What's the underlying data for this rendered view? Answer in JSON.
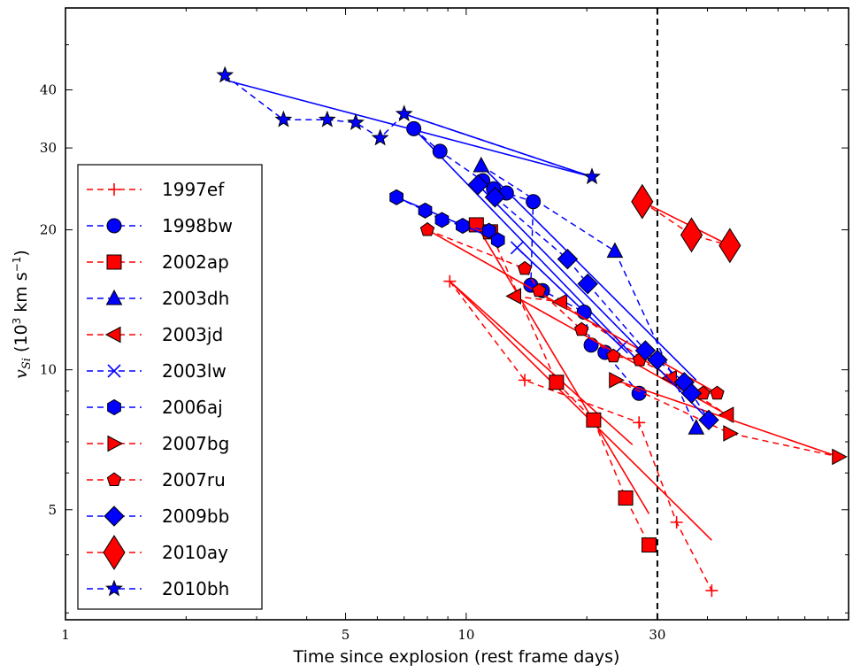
{
  "chart_data": {
    "type": "scatter",
    "xscale": "log",
    "yscale": "log",
    "xlabel": "Time since explosion (rest frame days)",
    "ylabel_main": "v",
    "ylabel_sub": "Si",
    "ylabel_unit_pre": "(10",
    "ylabel_unit_exp": "3",
    "ylabel_unit_post": " km s",
    "ylabel_unit_exp2": "−1",
    "ylabel_unit_close": ")",
    "xlim": [
      1,
      90
    ],
    "ylim": [
      2.9,
      60
    ],
    "xticks": [
      1,
      5,
      10,
      30
    ],
    "xtick_labels": [
      "1",
      "5",
      "10",
      "30"
    ],
    "yticks": [
      5,
      10,
      20,
      30,
      40
    ],
    "ytick_labels": [
      "5",
      "10",
      "20",
      "30",
      "40"
    ],
    "vline": 30,
    "legend_position": "center-left",
    "series": [
      {
        "name": "1997ef",
        "color": "#ff0000",
        "marker": "plus",
        "points": [
          [
            9.1,
            15.5
          ],
          [
            14.0,
            9.5
          ],
          [
            27.0,
            7.7
          ],
          [
            33.5,
            4.7
          ],
          [
            41.0,
            3.35
          ]
        ],
        "fits": [
          [
            [
              9.1,
              15.5
            ],
            [
              26.0,
              6.9
            ]
          ],
          [
            [
              9.1,
              15.5
            ],
            [
              41.0,
              4.3
            ]
          ]
        ]
      },
      {
        "name": "1998bw",
        "color": "#0000ff",
        "marker": "circle",
        "points": [
          [
            7.4,
            33.0
          ],
          [
            8.6,
            29.5
          ],
          [
            11.0,
            25.5
          ],
          [
            11.7,
            24.5
          ],
          [
            12.6,
            24.0
          ],
          [
            14.7,
            23.0
          ],
          [
            14.5,
            15.2
          ],
          [
            15.5,
            14.8
          ],
          [
            19.7,
            13.3
          ],
          [
            20.5,
            11.3
          ],
          [
            22.2,
            10.9
          ],
          [
            27.0,
            8.9
          ]
        ],
        "fits": [
          [
            [
              7.4,
              33.0
            ],
            [
              27.0,
              10.4
            ]
          ]
        ]
      },
      {
        "name": "2002ap",
        "color": "#ff0000",
        "marker": "square",
        "points": [
          [
            10.6,
            20.5
          ],
          [
            11.5,
            19.8
          ],
          [
            16.8,
            9.4
          ],
          [
            20.8,
            7.8
          ],
          [
            25.0,
            5.3
          ],
          [
            28.6,
            4.2
          ]
        ],
        "fits": [
          [
            [
              10.6,
              20.5
            ],
            [
              28.6,
              4.9
            ]
          ]
        ]
      },
      {
        "name": "2003dh",
        "color": "#0000ff",
        "marker": "triangle-up",
        "points": [
          [
            10.9,
            27.5
          ],
          [
            23.5,
            18.0
          ],
          [
            37.5,
            7.5
          ]
        ],
        "fits": [
          [
            [
              10.9,
              27.5
            ],
            [
              37.5,
              9.5
            ]
          ]
        ]
      },
      {
        "name": "2003jd",
        "color": "#ff0000",
        "marker": "triangle-left",
        "points": [
          [
            13.2,
            14.4
          ],
          [
            17.2,
            14.0
          ],
          [
            32.3,
            9.6
          ],
          [
            44.8,
            8.0
          ]
        ],
        "fits": [
          [
            [
              13.2,
              14.4
            ],
            [
              44.8,
              8.0
            ]
          ]
        ]
      },
      {
        "name": "2003lw",
        "color": "#0000ff",
        "marker": "x",
        "points": [
          [
            13.4,
            18.3
          ],
          [
            24.4,
            11.2
          ]
        ],
        "fits": [
          [
            [
              13.4,
              18.3
            ],
            [
              24.4,
              11.2
            ]
          ]
        ]
      },
      {
        "name": "2006aj",
        "color": "#0000ff",
        "marker": "hexagon",
        "points": [
          [
            6.7,
            23.5
          ],
          [
            7.9,
            22.0
          ],
          [
            8.7,
            21.0
          ],
          [
            9.8,
            20.4
          ],
          [
            11.4,
            19.9
          ],
          [
            12.0,
            19.0
          ]
        ],
        "fits": [
          [
            [
              6.7,
              23.5
            ],
            [
              12.0,
              19.0
            ]
          ]
        ]
      },
      {
        "name": "2007bg",
        "color": "#ff0000",
        "marker": "triangle-right",
        "points": [
          [
            23.6,
            9.5
          ],
          [
            45.5,
            7.3
          ],
          [
            85.0,
            6.5
          ]
        ],
        "fits": [
          [
            [
              23.6,
              9.5
            ],
            [
              85.0,
              6.5
            ]
          ]
        ]
      },
      {
        "name": "2007ru",
        "color": "#ff0000",
        "marker": "pentagon",
        "points": [
          [
            8.0,
            20.0
          ],
          [
            14.0,
            16.5
          ],
          [
            15.2,
            14.8
          ],
          [
            19.4,
            12.2
          ],
          [
            23.3,
            10.7
          ],
          [
            27.1,
            10.5
          ],
          [
            39.0,
            8.9
          ],
          [
            42.3,
            8.9
          ]
        ],
        "fits": [
          [
            [
              8.0,
              20.0
            ],
            [
              42.3,
              8.9
            ]
          ]
        ]
      },
      {
        "name": "2009bb",
        "color": "#0000ff",
        "marker": "diamond",
        "points": [
          [
            10.7,
            25.0
          ],
          [
            11.8,
            23.5
          ],
          [
            17.9,
            17.3
          ],
          [
            20.1,
            15.3
          ],
          [
            28.0,
            11.0
          ],
          [
            30.0,
            10.5
          ],
          [
            35.0,
            9.4
          ],
          [
            36.5,
            8.9
          ],
          [
            40.3,
            7.8
          ]
        ],
        "fits": [
          [
            [
              10.7,
              25.0
            ],
            [
              40.3,
              7.8
            ]
          ]
        ]
      },
      {
        "name": "2010ay",
        "color": "#ff0000",
        "marker": "diamond-large",
        "points": [
          [
            27.5,
            23.0
          ],
          [
            36.5,
            19.5
          ],
          [
            45.5,
            18.5
          ]
        ],
        "fits": [
          [
            [
              27.5,
              23.0
            ],
            [
              45.5,
              18.5
            ]
          ]
        ]
      },
      {
        "name": "2010bh",
        "color": "#0000ff",
        "marker": "star",
        "points": [
          [
            2.5,
            43.0
          ],
          [
            3.5,
            34.5
          ],
          [
            4.5,
            34.5
          ],
          [
            5.3,
            34.0
          ],
          [
            6.1,
            31.5
          ],
          [
            7.0,
            35.5
          ],
          [
            20.6,
            26.0
          ]
        ],
        "fits": [
          [
            [
              2.5,
              42.0
            ],
            [
              20.6,
              26.0
            ]
          ],
          [
            [
              7.0,
              35.5
            ],
            [
              20.6,
              26.0
            ]
          ]
        ]
      }
    ]
  }
}
